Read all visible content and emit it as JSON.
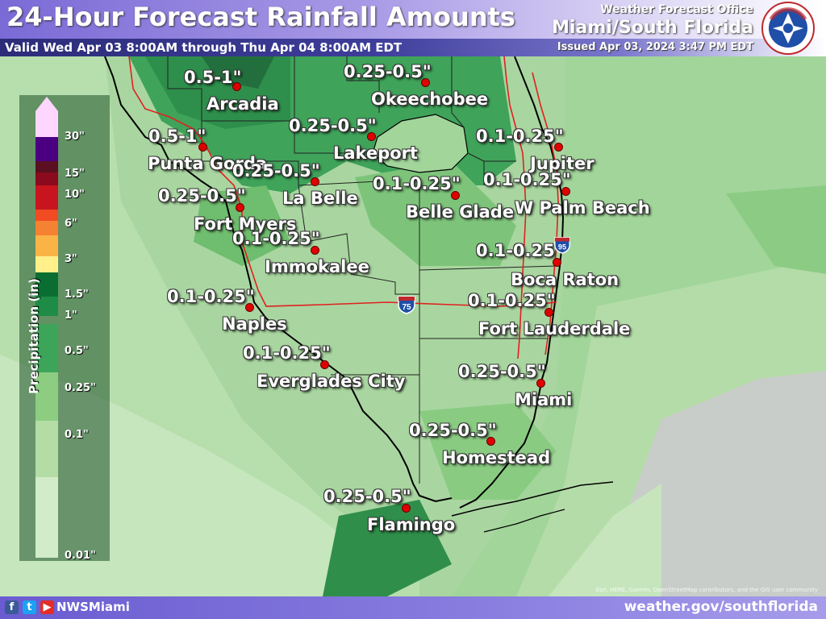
{
  "header": {
    "title": "24-Hour Forecast Rainfall Amounts",
    "valid": "Valid Wed Apr 03 8:00AM through Thu Apr 04 8:00AM EDT",
    "office_label": "Weather Forecast Office",
    "office_name": "Miami/South Florida",
    "issued": "Issued Apr 03, 2024 3:47 PM EDT",
    "logo_text": "NATIONAL WEATHER SERVICE"
  },
  "legend": {
    "title": "Precipitation (in)",
    "ticks": [
      "30\"",
      "15\"",
      "10\"",
      "6\"",
      "3\"",
      "1.5\"",
      "1\"",
      "0.5\"",
      "0.25\"",
      "0.1\"",
      "0.01\""
    ],
    "colors": [
      "#ffd6ff",
      "#4b0082",
      "#5a1020",
      "#8b0a1e",
      "#c8141e",
      "#f04b23",
      "#f58232",
      "#fab446",
      "#fff08c",
      "#0a6e32",
      "#1e8c46",
      "#3ca55a",
      "#8ccd82",
      "#b4dca5",
      "#d2ebc8"
    ]
  },
  "locations": [
    {
      "name": "Arcadia",
      "amount": "0.5-1\""
    },
    {
      "name": "Okeechobee",
      "amount": "0.25-0.5\""
    },
    {
      "name": "Lakeport",
      "amount": "0.25-0.5\""
    },
    {
      "name": "Punta Gorda",
      "amount": "0.5-1\""
    },
    {
      "name": "La Belle",
      "amount": "0.25-0.5\""
    },
    {
      "name": "Fort Myers",
      "amount": "0.25-0.5\""
    },
    {
      "name": "Jupiter",
      "amount": "0.1-0.25\""
    },
    {
      "name": "Belle Glade",
      "amount": "0.1-0.25\""
    },
    {
      "name": "W Palm Beach",
      "amount": "0.1-0.25\""
    },
    {
      "name": "Immokalee",
      "amount": "0.1-0.25\""
    },
    {
      "name": "Boca Raton",
      "amount": "0.1-0.25\""
    },
    {
      "name": "Naples",
      "amount": "0.1-0.25\""
    },
    {
      "name": "Fort Lauderdale",
      "amount": "0.1-0.25\""
    },
    {
      "name": "Everglades City",
      "amount": "0.1-0.25\""
    },
    {
      "name": "Miami",
      "amount": "0.25-0.5\""
    },
    {
      "name": "Homestead",
      "amount": "0.25-0.5\""
    },
    {
      "name": "Flamingo",
      "amount": "0.25-0.5\""
    }
  ],
  "shields": {
    "i75": "75",
    "i95": "95"
  },
  "footer": {
    "handle": "NWSMiami",
    "website": "weather.gov/southflorida",
    "attribution": "Esri, HERE, Garmin, OpenStreetMap contributors, and the GIS user community"
  }
}
